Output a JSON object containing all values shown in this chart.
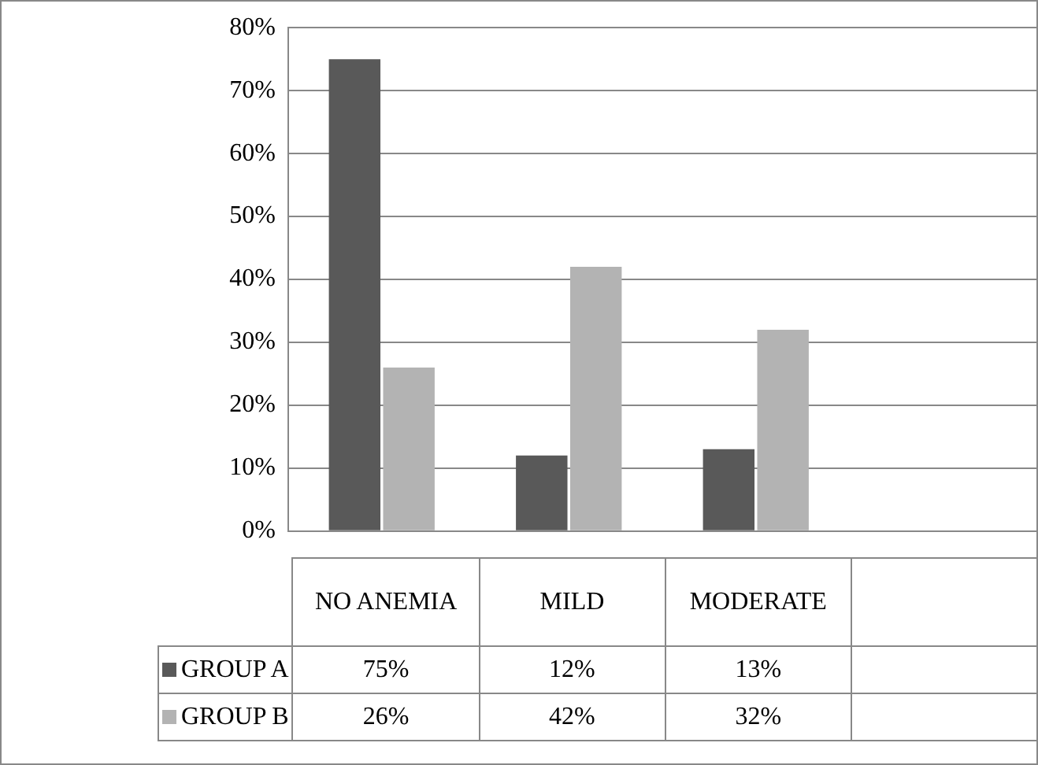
{
  "chart_data": {
    "type": "bar",
    "categories": [
      "NO ANEMIA",
      "MILD",
      "MODERATE",
      null
    ],
    "series": [
      {
        "name": "GROUP A",
        "color": "#595959",
        "values": [
          75,
          12,
          13,
          null
        ],
        "value_labels": [
          "75%",
          "12%",
          "13%",
          null
        ]
      },
      {
        "name": "GROUP B",
        "color": "#b3b3b3",
        "values": [
          26,
          42,
          32,
          null
        ],
        "value_labels": [
          "26%",
          "42%",
          "32%",
          null
        ]
      }
    ],
    "ylim": [
      0,
      80
    ],
    "yticks": [
      {
        "value": 0,
        "label": "0%"
      },
      {
        "value": 10,
        "label": "10%"
      },
      {
        "value": 20,
        "label": "20%"
      },
      {
        "value": 30,
        "label": "30%"
      },
      {
        "value": 40,
        "label": "40%"
      },
      {
        "value": 50,
        "label": "50%"
      },
      {
        "value": 60,
        "label": "60%"
      },
      {
        "value": 70,
        "label": "70%"
      },
      {
        "value": 80,
        "label": "80%"
      }
    ],
    "grid": "y",
    "legend": "bottom"
  }
}
